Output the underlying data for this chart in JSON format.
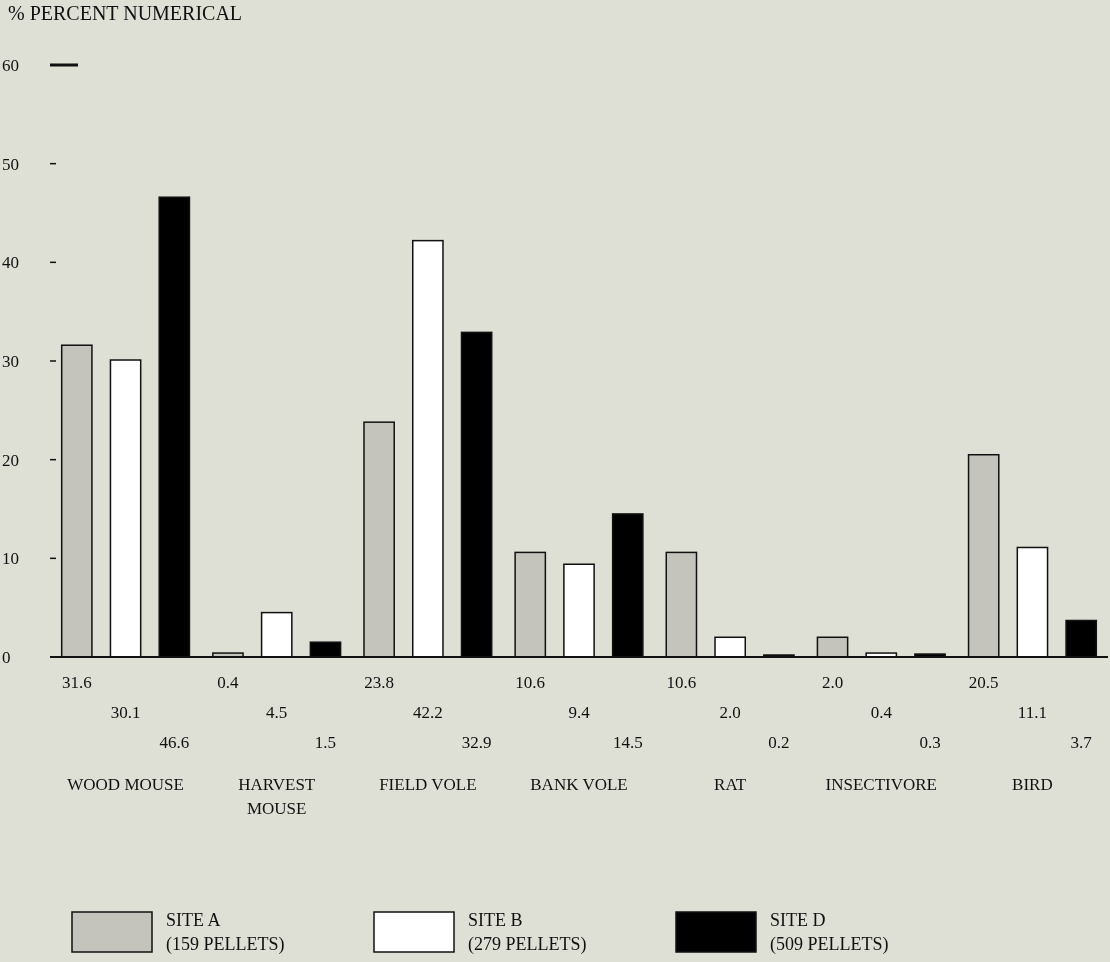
{
  "chart_data": {
    "type": "bar",
    "ylabel": "% PERCENT NUMERICAL",
    "categories": [
      "WOOD MOUSE",
      "HARVEST MOUSE",
      "FIELD VOLE",
      "BANK VOLE",
      "RAT",
      "INSECTIVORE",
      "BIRD"
    ],
    "series": [
      {
        "name": "SITE A (159 PELLETS)",
        "color": "#c4c4bc",
        "values": [
          31.6,
          0.4,
          23.8,
          10.6,
          10.6,
          2.0,
          20.5
        ],
        "value_labels": [
          "31.6",
          "0.4",
          "23.8",
          "10.6",
          "10.6",
          "2.0",
          "20.5"
        ]
      },
      {
        "name": "SITE B (279 PELLETS)",
        "color": "#ffffff",
        "values": [
          30.1,
          4.5,
          42.2,
          9.4,
          2.0,
          0.4,
          11.1
        ],
        "value_labels": [
          "30.1",
          "4.5",
          "42.2",
          "9.4",
          "2.0",
          "0.4",
          "11.1"
        ]
      },
      {
        "name": "SITE D (509 PELLETS)",
        "color": "#000000",
        "values": [
          46.6,
          1.5,
          32.9,
          14.5,
          0.2,
          0.3,
          3.7
        ],
        "value_labels": [
          "46.6",
          "1.5",
          "32.9",
          "14.5",
          "0.2",
          "0.3",
          "3.7"
        ]
      }
    ],
    "ylim": [
      0,
      60
    ],
    "yticks": [
      0,
      10,
      20,
      30,
      40,
      50,
      60
    ],
    "legend": "bottom"
  }
}
